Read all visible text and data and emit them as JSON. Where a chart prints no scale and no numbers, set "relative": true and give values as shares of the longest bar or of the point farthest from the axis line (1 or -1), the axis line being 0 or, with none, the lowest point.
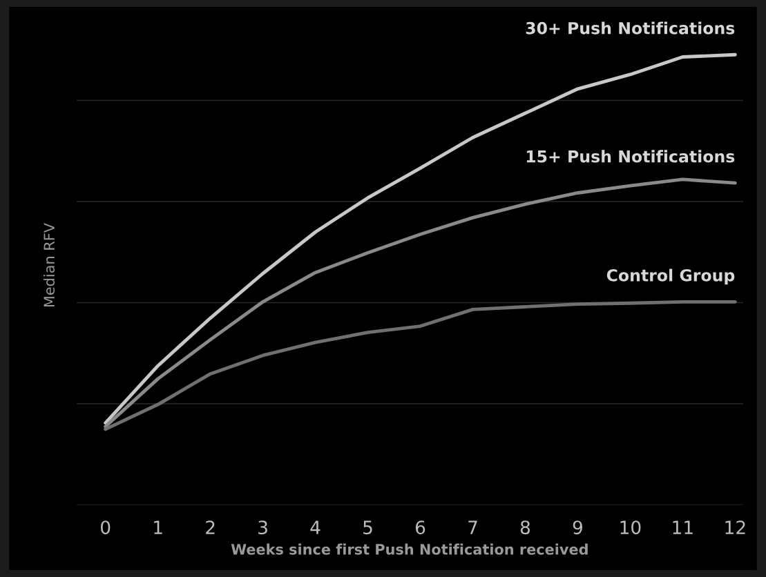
{
  "chart_data": {
    "type": "line",
    "relative": true,
    "xlabel": "Weeks since first Push Notification received",
    "ylabel": "Median RFV",
    "x": [
      0,
      1,
      2,
      3,
      4,
      5,
      6,
      7,
      8,
      9,
      10,
      11,
      12
    ],
    "xlim": [
      -0.55,
      12.15
    ],
    "xticks": [
      0,
      1,
      2,
      3,
      4,
      5,
      6,
      7,
      8,
      9,
      10,
      11,
      12
    ],
    "tick_labels": "x",
    "grid": "y",
    "legend": false,
    "marker": "none",
    "line_style": "solid",
    "series": [
      {
        "name": "30+ Push Notifications",
        "color": "#c8c8c8",
        "values": [
          0.182,
          0.309,
          0.415,
          0.514,
          0.606,
          0.682,
          0.748,
          0.816,
          0.87,
          0.924,
          0.956,
          0.995,
          1.0
        ]
      },
      {
        "name": "15+ Push Notifications",
        "color": "#8a8a8a",
        "values": [
          0.174,
          0.28,
          0.367,
          0.451,
          0.516,
          0.56,
          0.601,
          0.638,
          0.668,
          0.693,
          0.709,
          0.723,
          0.715
        ]
      },
      {
        "name": "Control Group",
        "color": "#707070",
        "values": [
          0.168,
          0.223,
          0.291,
          0.332,
          0.361,
          0.383,
          0.397,
          0.434,
          0.44,
          0.446,
          0.448,
          0.451,
          0.451
        ]
      }
    ]
  }
}
